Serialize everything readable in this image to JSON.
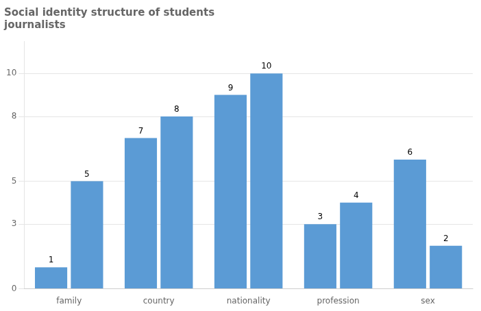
{
  "chart_data": {
    "type": "bar",
    "title": "Social identity structure of students\njournalists",
    "categories": [
      "family",
      "country",
      "nationality",
      "profession",
      "sex"
    ],
    "series": [
      {
        "color": "#5B9BD5",
        "values": [
          1,
          7,
          9,
          3,
          6
        ]
      },
      {
        "color": "#5B9BD5",
        "values": [
          5,
          8,
          10,
          4,
          2
        ]
      }
    ],
    "ylim": [
      0,
      11.5
    ],
    "yticks": [
      0,
      3,
      5,
      8,
      10
    ],
    "grid": true,
    "data_labels": true
  }
}
